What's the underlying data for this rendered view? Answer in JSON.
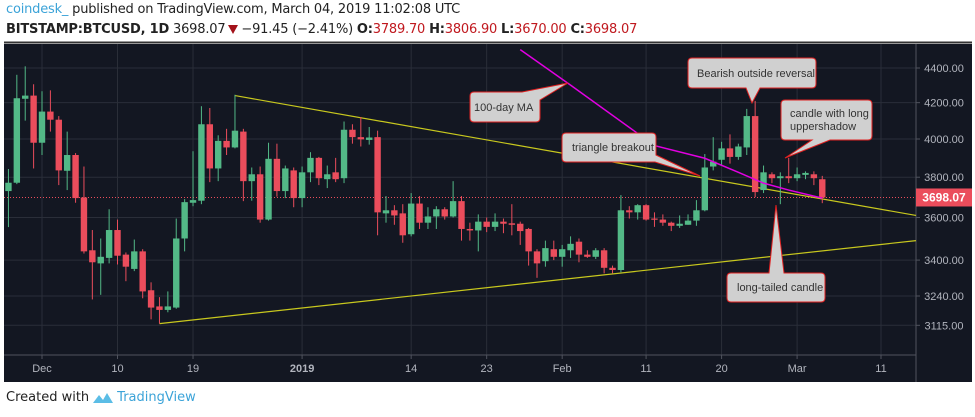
{
  "header": {
    "author": "coindesk_",
    "published": "published on TradingView.com, March 04, 2019 11:02:08 UTC",
    "symbol": "BITSTAMP:BTCUSD, 1D",
    "last": "3698.07",
    "change": "−91.45 (−2.41%)",
    "o_label": "O:",
    "o": "3789.70",
    "h_label": "H:",
    "h": "3806.90",
    "l_label": "L:",
    "l": "3670.00",
    "c_label": "C:",
    "c": "3698.07"
  },
  "footer": {
    "created_with": "Created with",
    "brand": "TradingView"
  },
  "colors": {
    "up": "#53b987",
    "down": "#eb4d5c",
    "background": "#131722",
    "grid": "#2a2e39",
    "trendline": "#c8c81e",
    "ma": "#e100e1",
    "price_label": "#eb4d5c"
  },
  "chart_data": {
    "type": "candlestick",
    "title": "BITSTAMP:BTCUSD, 1D",
    "scale": "log",
    "ylim": [
      3060,
      4560
    ],
    "y_ticks": [
      "4400.00",
      "4200.00",
      "4000.00",
      "3800.00",
      "3600.00",
      "3400.00",
      "3240.00",
      "3115.00"
    ],
    "x_ticks": [
      {
        "label": "Dec",
        "index": 4,
        "bold": false
      },
      {
        "label": "10",
        "index": 13,
        "bold": false
      },
      {
        "label": "19",
        "index": 22,
        "bold": false
      },
      {
        "label": "2019",
        "index": 35,
        "bold": true
      },
      {
        "label": "14",
        "index": 48,
        "bold": false
      },
      {
        "label": "23",
        "index": 57,
        "bold": false
      },
      {
        "label": "Feb",
        "index": 66,
        "bold": false
      },
      {
        "label": "11",
        "index": 76,
        "bold": false
      },
      {
        "label": "20",
        "index": 85,
        "bold": false
      },
      {
        "label": "Mar",
        "index": 94,
        "bold": false
      },
      {
        "label": "11",
        "index": 104,
        "bold": false
      }
    ],
    "x_range": [
      -0.8,
      108.6
    ],
    "current_price": "3698.07",
    "candles_ohlc": [
      [
        3730,
        3842,
        3554,
        3772
      ],
      [
        3772,
        4360,
        3765,
        4225
      ],
      [
        4222,
        4410,
        4100,
        4240
      ],
      [
        4240,
        4305,
        3845,
        3980
      ],
      [
        3980,
        4265,
        3915,
        4150
      ],
      [
        4150,
        4270,
        4040,
        4105
      ],
      [
        4105,
        4125,
        3760,
        3835
      ],
      [
        3833,
        4040,
        3735,
        3915
      ],
      [
        3915,
        3925,
        3672,
        3695
      ],
      [
        3698,
        3855,
        3430,
        3440
      ],
      [
        3445,
        3540,
        3225,
        3390
      ],
      [
        3385,
        3500,
        3245,
        3415
      ],
      [
        3410,
        3640,
        3385,
        3540
      ],
      [
        3540,
        3590,
        3380,
        3420
      ],
      [
        3425,
        3435,
        3305,
        3370
      ],
      [
        3360,
        3495,
        3350,
        3440
      ],
      [
        3440,
        3450,
        3230,
        3260
      ],
      [
        3265,
        3300,
        3140,
        3190
      ],
      [
        3195,
        3235,
        3122,
        3180
      ],
      [
        3180,
        3260,
        3170,
        3195
      ],
      [
        3190,
        3595,
        3185,
        3500
      ],
      [
        3500,
        3690,
        3440,
        3675
      ],
      [
        3672,
        3935,
        3655,
        3685
      ],
      [
        3682,
        4180,
        3665,
        4080
      ],
      [
        4080,
        4170,
        3775,
        3845
      ],
      [
        3845,
        4020,
        3780,
        3990
      ],
      [
        3990,
        4055,
        3915,
        3955
      ],
      [
        3955,
        4245,
        3950,
        4045
      ],
      [
        4040,
        4055,
        3680,
        3780
      ],
      [
        3780,
        3850,
        3682,
        3815
      ],
      [
        3815,
        3855,
        3575,
        3590
      ],
      [
        3590,
        3980,
        3585,
        3895
      ],
      [
        3895,
        3975,
        3702,
        3730
      ],
      [
        3730,
        3860,
        3695,
        3845
      ],
      [
        3835,
        3850,
        3650,
        3695
      ],
      [
        3695,
        3855,
        3650,
        3825
      ],
      [
        3825,
        3930,
        3775,
        3900
      ],
      [
        3900,
        3905,
        3760,
        3795
      ],
      [
        3790,
        3860,
        3745,
        3815
      ],
      [
        3825,
        3900,
        3775,
        3790
      ],
      [
        3795,
        4095,
        3770,
        4050
      ],
      [
        4050,
        4080,
        3975,
        4010
      ],
      [
        4010,
        4120,
        3960,
        3998
      ],
      [
        3995,
        4065,
        3970,
        4008
      ],
      [
        4010,
        4045,
        3515,
        3625
      ],
      [
        3620,
        3705,
        3575,
        3635
      ],
      [
        3635,
        3660,
        3565,
        3610
      ],
      [
        3620,
        3665,
        3480,
        3515
      ],
      [
        3520,
        3720,
        3510,
        3668
      ],
      [
        3668,
        3705,
        3545,
        3575
      ],
      [
        3575,
        3650,
        3545,
        3605
      ],
      [
        3605,
        3655,
        3545,
        3640
      ],
      [
        3640,
        3650,
        3590,
        3605
      ],
      [
        3605,
        3780,
        3600,
        3680
      ],
      [
        3680,
        3705,
        3490,
        3545
      ],
      [
        3545,
        3575,
        3490,
        3538
      ],
      [
        3538,
        3615,
        3440,
        3580
      ],
      [
        3580,
        3600,
        3530,
        3555
      ],
      [
        3555,
        3620,
        3535,
        3580
      ],
      [
        3580,
        3595,
        3525,
        3570
      ],
      [
        3572,
        3665,
        3515,
        3565
      ],
      [
        3570,
        3580,
        3470,
        3535
      ],
      [
        3545,
        3550,
        3375,
        3440
      ],
      [
        3440,
        3450,
        3320,
        3385
      ],
      [
        3395,
        3490,
        3370,
        3455
      ],
      [
        3450,
        3490,
        3400,
        3415
      ],
      [
        3415,
        3470,
        3370,
        3450
      ],
      [
        3445,
        3510,
        3410,
        3475
      ],
      [
        3485,
        3500,
        3390,
        3425
      ],
      [
        3425,
        3445,
        3410,
        3415
      ],
      [
        3415,
        3455,
        3405,
        3445
      ],
      [
        3445,
        3455,
        3340,
        3365
      ],
      [
        3365,
        3375,
        3340,
        3355
      ],
      [
        3355,
        3710,
        3345,
        3635
      ],
      [
        3635,
        3655,
        3595,
        3625
      ],
      [
        3625,
        3665,
        3590,
        3660
      ],
      [
        3660,
        3665,
        3585,
        3590
      ],
      [
        3595,
        3625,
        3555,
        3590
      ],
      [
        3590,
        3615,
        3560,
        3575
      ],
      [
        3575,
        3580,
        3535,
        3560
      ],
      [
        3560,
        3610,
        3550,
        3570
      ],
      [
        3565,
        3615,
        3565,
        3585
      ],
      [
        3585,
        3685,
        3560,
        3635
      ],
      [
        3635,
        3920,
        3630,
        3850
      ],
      [
        3855,
        4010,
        3835,
        3880
      ],
      [
        3890,
        3985,
        3860,
        3950
      ],
      [
        3950,
        4025,
        3870,
        3905
      ],
      [
        3905,
        3975,
        3890,
        3960
      ],
      [
        3955,
        4165,
        3915,
        4125
      ],
      [
        4125,
        4210,
        3700,
        3725
      ],
      [
        3735,
        3860,
        3720,
        3825
      ],
      [
        3815,
        3825,
        3770,
        3795
      ],
      [
        3795,
        3825,
        3665,
        3805
      ],
      [
        3805,
        3900,
        3770,
        3795
      ],
      [
        3795,
        3850,
        3780,
        3815
      ],
      [
        3812,
        3830,
        3790,
        3822
      ],
      [
        3815,
        3830,
        3760,
        3795
      ],
      [
        3789.7,
        3806.9,
        3670,
        3698.07
      ]
    ],
    "moving_average": {
      "name": "100-day MA",
      "points": [
        [
          61,
          4510
        ],
        [
          67,
          4300
        ],
        [
          77,
          3965
        ],
        [
          83,
          3898
        ],
        [
          87,
          3825
        ],
        [
          90,
          3770
        ],
        [
          93,
          3735
        ],
        [
          97,
          3695
        ]
      ]
    },
    "trendlines": [
      {
        "name": "upper-trendline",
        "from": [
          27,
          4240
        ],
        "to": [
          108.6,
          3610
        ]
      },
      {
        "name": "lower-trendline",
        "from": [
          18,
          3122
        ],
        "to": [
          108.6,
          3490
        ]
      }
    ],
    "annotations": {
      "ma": "100-day MA",
      "reversal": "Bearish outside reversal",
      "shadow_line1": "candle with long",
      "shadow_line2": "uppershadow",
      "breakout": "triangle breakout",
      "tail": "long-tailed candle"
    }
  }
}
